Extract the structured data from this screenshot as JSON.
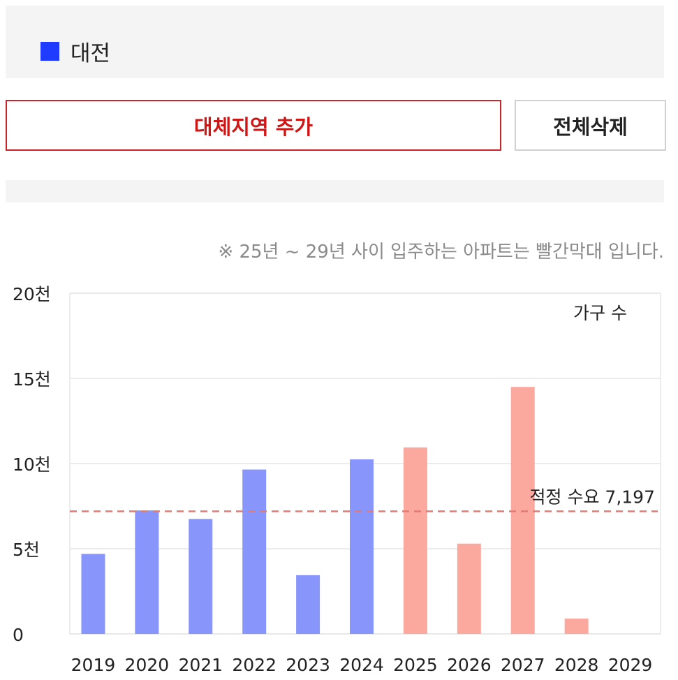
{
  "legend": {
    "label": "대전",
    "color": "#1f3bff"
  },
  "buttons": {
    "add_label": "대체지역 추가",
    "add_color": "#d01515",
    "delete_label": "전체삭제"
  },
  "note": "※ 25년 ~ 29년 사이 입주하는 아파트는 빨간막대 입니다.",
  "chart_data": {
    "type": "bar",
    "categories": [
      "2019",
      "2020",
      "2021",
      "2022",
      "2023",
      "2024",
      "2025",
      "2026",
      "2027",
      "2028",
      "2029"
    ],
    "values": [
      4700,
      7250,
      6750,
      9650,
      3450,
      10250,
      10950,
      5300,
      14500,
      900,
      0
    ],
    "colors": [
      "#8896fb",
      "#8896fb",
      "#8896fb",
      "#8896fb",
      "#8896fb",
      "#8896fb",
      "#fba99f",
      "#fba99f",
      "#fba99f",
      "#fba99f",
      "#fba99f"
    ],
    "ylim": [
      0,
      20000
    ],
    "yticks": [
      0,
      5000,
      10000,
      15000,
      20000
    ],
    "ytick_labels": [
      "0",
      "5천",
      "10천",
      "15천",
      "20천"
    ],
    "unit_label": "가구 수",
    "reference_line": {
      "value": 7197,
      "label": "적정 수요 7,197",
      "color": "#e57a72"
    },
    "grid": true
  }
}
